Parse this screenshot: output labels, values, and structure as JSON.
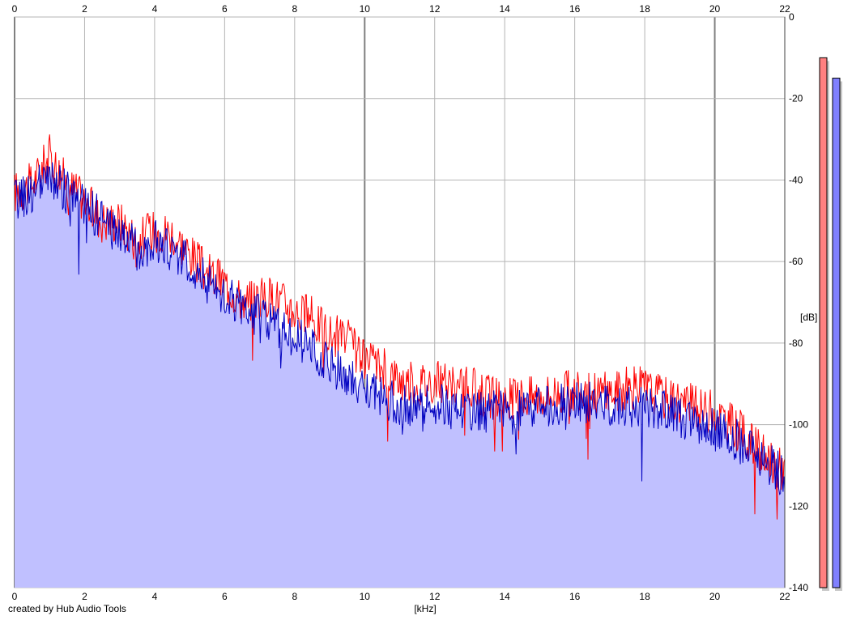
{
  "chart_data": {
    "type": "area",
    "xlabel": "[kHz]",
    "ylabel": "[dB]",
    "xlim": [
      0,
      22
    ],
    "ylim": [
      -140,
      0
    ],
    "x_ticks": [
      "0",
      "2",
      "4",
      "6",
      "8",
      "10",
      "12",
      "14",
      "16",
      "18",
      "20",
      "22"
    ],
    "y_ticks": [
      "0",
      "-20",
      "-40",
      "-60",
      "-80",
      "-100",
      "-120",
      "-140"
    ],
    "grid": true,
    "x": [
      0,
      0.5,
      1,
      1.5,
      2,
      2.5,
      3,
      3.5,
      4,
      4.5,
      5,
      5.5,
      6,
      6.5,
      7,
      7.5,
      8,
      8.5,
      9,
      9.5,
      10,
      10.5,
      11,
      11.5,
      12,
      12.5,
      13,
      13.5,
      14,
      14.5,
      15,
      15.5,
      16,
      16.5,
      17,
      17.5,
      18,
      18.5,
      19,
      19.5,
      20,
      20.5,
      21,
      21.5,
      22
    ],
    "series": [
      {
        "color": "#ff0000",
        "values": [
          -43,
          -41,
          -34,
          -41,
          -45,
          -50,
          -50,
          -55,
          -52,
          -53,
          -58,
          -63,
          -65,
          -70,
          -69,
          -69,
          -72,
          -74,
          -78,
          -79,
          -85,
          -86,
          -89,
          -90,
          -89,
          -91,
          -91,
          -93,
          -94,
          -93,
          -93,
          -92,
          -92,
          -92,
          -92,
          -91,
          -91,
          -93,
          -94,
          -96,
          -97,
          -100,
          -104,
          -109,
          -111
        ]
      },
      {
        "color": "#0000c0",
        "values": [
          -45,
          -43,
          -40,
          -43,
          -46,
          -50,
          -53,
          -57,
          -55,
          -58,
          -60,
          -65,
          -68,
          -72,
          -73,
          -76,
          -78,
          -82,
          -86,
          -88,
          -92,
          -93,
          -95,
          -96,
          -95,
          -96,
          -96,
          -97,
          -97,
          -97,
          -96,
          -95,
          -95,
          -95,
          -95,
          -95,
          -96,
          -97,
          -98,
          -99,
          -101,
          -103,
          -106,
          -109,
          -113
        ]
      }
    ]
  },
  "meters": {
    "left": {
      "color": "#ff8080",
      "level_db": -10
    },
    "right": {
      "color": "#8080ff",
      "level_db": -15
    }
  },
  "footer": {
    "credit": "created by Hub Audio Tools"
  }
}
